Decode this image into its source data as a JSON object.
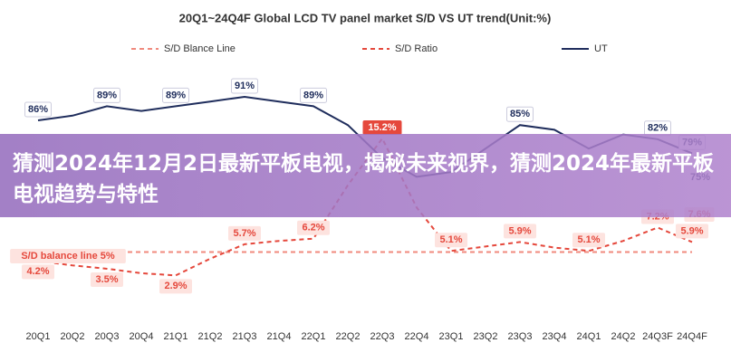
{
  "chart_data": {
    "type": "line",
    "title": "20Q1~24Q4F Global LCD TV panel market S/D VS UT trend(Unit:%)",
    "overlay_title": "猜测2024年12月2日最新平板电视，揭秘未来视界，猜测2024年最新平板电视趋势与特性",
    "categories": [
      "20Q1",
      "20Q2",
      "20Q3",
      "20Q4",
      "21Q1",
      "21Q2",
      "21Q3",
      "21Q4",
      "22Q1",
      "22Q2",
      "22Q3",
      "22Q4",
      "23Q1",
      "23Q2",
      "23Q3",
      "23Q4",
      "24Q1",
      "24Q2",
      "24Q3F",
      "24Q4F"
    ],
    "series": [
      {
        "name": "S/D Blance Line",
        "color": "#f08a7e",
        "dashed": true,
        "axis": "sd",
        "values": [
          5,
          5,
          5,
          5,
          5,
          5,
          5,
          5,
          5,
          5,
          5,
          5,
          5,
          5,
          5,
          5,
          5,
          5,
          5,
          5
        ]
      },
      {
        "name": "S/D Ratio",
        "color": "#e5483c",
        "dashed": true,
        "axis": "sd",
        "values": [
          4.2,
          3.8,
          3.5,
          3.1,
          2.9,
          4.4,
          5.7,
          6.0,
          6.2,
          11.0,
          15.2,
          9.0,
          5.1,
          5.5,
          5.9,
          5.4,
          5.1,
          6.0,
          7.2,
          5.9
        ],
        "value_labels": [
          "4.2%",
          null,
          "3.5%",
          null,
          "2.9%",
          null,
          "5.7%",
          null,
          "6.2%",
          null,
          "15.2%",
          null,
          "5.1%",
          null,
          "5.9%",
          null,
          "5.1%",
          null,
          "7.2%",
          "5.9%"
        ]
      },
      {
        "name": "UT",
        "color": "#1f2d5c",
        "dashed": false,
        "axis": "ut",
        "values": [
          86,
          87,
          89,
          88,
          89,
          90,
          91,
          90,
          89,
          85,
          78,
          74,
          75,
          80,
          85,
          84,
          80,
          83,
          82,
          79
        ],
        "value_labels": [
          "86%",
          null,
          "89%",
          null,
          "89%",
          null,
          "91%",
          null,
          "89%",
          null,
          null,
          null,
          null,
          null,
          "85%",
          null,
          null,
          null,
          "82%",
          "79%"
        ]
      }
    ],
    "annotations": [
      "S/D balance line 5%",
      "75%",
      "7.6%"
    ]
  }
}
